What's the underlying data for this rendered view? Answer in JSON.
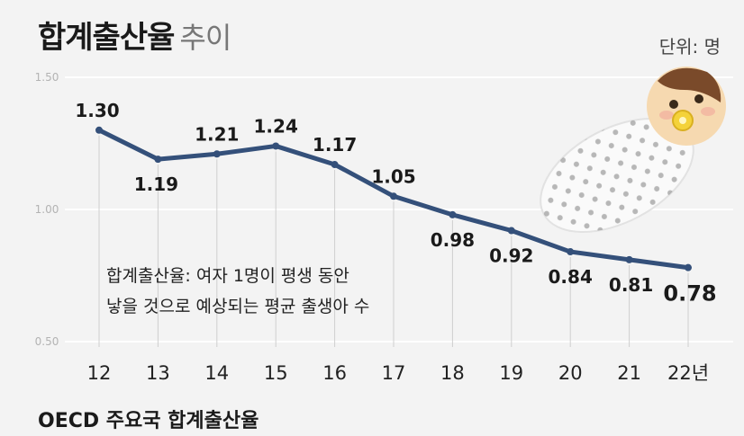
{
  "title": {
    "main": "합계출산율",
    "sub": "추이"
  },
  "unit_label": "단위: 명",
  "note": {
    "line1": "합계출산율: 여자 1명이 평생 동안",
    "line2": "낳을 것으로 예상되는 평균 출생아 수"
  },
  "bottom_title": "OECD 주요국 합계출산율",
  "colors": {
    "line": "#34507a",
    "background": "#f3f3f3",
    "grid": "#ffffff",
    "tick_line": "#cfcfcf"
  },
  "chart_data": {
    "type": "line",
    "title": "합계출산율 추이",
    "xlabel": "",
    "ylabel": "단위: 명",
    "categories": [
      "12",
      "13",
      "14",
      "15",
      "16",
      "17",
      "18",
      "19",
      "20",
      "21",
      "22년"
    ],
    "series": [
      {
        "name": "합계출산율",
        "values": [
          1.3,
          1.19,
          1.21,
          1.24,
          1.17,
          1.05,
          0.98,
          0.92,
          0.84,
          0.81,
          0.78
        ]
      }
    ],
    "data_labels": [
      "1.30",
      "1.19",
      "1.21",
      "1.24",
      "1.17",
      "1.05",
      "0.98",
      "0.92",
      "0.84",
      "0.81",
      "0.78"
    ],
    "yticks": [
      "1.50",
      "1.00",
      "0.50"
    ],
    "ytick_values": [
      1.5,
      1.0,
      0.5
    ],
    "ylim": [
      0.5,
      1.5
    ],
    "grid": true
  }
}
